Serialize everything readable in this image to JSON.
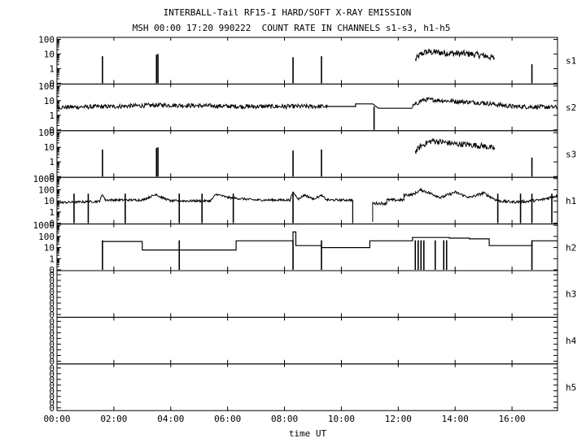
{
  "chart_data": {
    "type": "line",
    "title": "INTERBALL-Tail RF15-I HARD/SOFT X-RAY EMISSION",
    "subtitle": "MSH 00:00 17:20 990222  COUNT RATE IN CHANNELS s1-s3, h1-h5",
    "xlabel": "time UT",
    "x_unit": "hours UT",
    "xlim": [
      0,
      17.6
    ],
    "x_ticks": [
      {
        "x": 0,
        "label": "00:00"
      },
      {
        "x": 2,
        "label": "02:00"
      },
      {
        "x": 4,
        "label": "04:00"
      },
      {
        "x": 6,
        "label": "06:00"
      },
      {
        "x": 8,
        "label": "08:00"
      },
      {
        "x": 10,
        "label": "10:00"
      },
      {
        "x": 12,
        "label": "12:00"
      },
      {
        "x": 14,
        "label": "14:00"
      },
      {
        "x": 16,
        "label": "16:00"
      }
    ],
    "y_scale": "log",
    "panels": [
      {
        "name": "s1",
        "ylim": [
          0.1,
          120
        ],
        "y_ticks": [
          {
            "v": 0.1,
            "label": "0"
          },
          {
            "v": 1,
            "label": "1"
          },
          {
            "v": 10,
            "label": "10"
          },
          {
            "v": 100,
            "label": "100"
          }
        ],
        "series": {
          "base": 0.1,
          "spikes": [
            [
              1.6,
              7
            ],
            [
              3.5,
              9
            ],
            [
              3.55,
              10
            ],
            [
              8.3,
              6
            ],
            [
              9.3,
              7
            ],
            [
              16.7,
              2
            ]
          ],
          "segments": [
            {
              "x": [
                12.6,
                12.8,
                13.0,
                13.3,
                13.6,
                14.0,
                14.5,
                15.0,
                15.4
              ],
              "y": [
                4,
                10,
                14,
                13,
                12,
                11,
                10,
                8,
                5
              ],
              "noise": 0.45
            }
          ]
        }
      },
      {
        "name": "s2",
        "ylim": [
          0.1,
          120
        ],
        "y_ticks": [
          {
            "v": 0.1,
            "label": "0"
          },
          {
            "v": 1,
            "label": "1"
          },
          {
            "v": 10,
            "label": "10"
          },
          {
            "v": 100,
            "label": "100"
          }
        ],
        "series": {
          "base": 0.1,
          "spikes": [
            [
              11.15,
              4
            ]
          ],
          "segments": [
            {
              "x": [
                0,
                2,
                3.7,
                5,
                6.5,
                8,
                9.5
              ],
              "y": [
                3.5,
                4,
                5,
                4.5,
                4,
                4,
                4
              ],
              "noise": 0.3
            },
            {
              "x": [
                9.5,
                10.5,
                10.5,
                11.1,
                11.3,
                12.5
              ],
              "y": [
                4,
                4,
                6,
                6,
                3,
                3
              ],
              "noise": 0
            },
            {
              "x": [
                12.5,
                12.8,
                13.0,
                14.0,
                15.0,
                16.0,
                17.6
              ],
              "y": [
                4,
                10,
                12,
                9,
                7,
                4,
                3.5
              ],
              "noise": 0.3
            }
          ]
        }
      },
      {
        "name": "s3",
        "ylim": [
          0.1,
          120
        ],
        "y_ticks": [
          {
            "v": 0.1,
            "label": "0"
          },
          {
            "v": 1,
            "label": "1"
          },
          {
            "v": 10,
            "label": "10"
          },
          {
            "v": 100,
            "label": "100"
          }
        ],
        "series": {
          "base": 0.1,
          "spikes": [
            [
              1.6,
              7
            ],
            [
              3.5,
              9
            ],
            [
              3.55,
              10
            ],
            [
              8.3,
              6
            ],
            [
              9.3,
              7
            ],
            [
              16.7,
              2
            ]
          ],
          "segments": [
            {
              "x": [
                12.6,
                12.8,
                13.0,
                13.2,
                13.6,
                14.0,
                14.5,
                15.0,
                15.4
              ],
              "y": [
                5,
                12,
                20,
                28,
                22,
                17,
                15,
                12,
                8
              ],
              "noise": 0.4
            }
          ]
        }
      },
      {
        "name": "h1",
        "ylim": [
          0.1,
          1100
        ],
        "y_ticks": [
          {
            "v": 0.1,
            "label": "0"
          },
          {
            "v": 1,
            "label": "1"
          },
          {
            "v": 10,
            "label": "10"
          },
          {
            "v": 100,
            "label": "100"
          },
          {
            "v": 1000,
            "label": "1000"
          }
        ],
        "series": {
          "base": 0.1,
          "spikes": [
            [
              0.6,
              0.1
            ],
            [
              1.1,
              0.1
            ],
            [
              2.4,
              0.1
            ],
            [
              4.3,
              0.1
            ],
            [
              5.1,
              0.1
            ],
            [
              6.2,
              0.1
            ],
            [
              8.3,
              0.1
            ],
            [
              15.5,
              0.1
            ],
            [
              16.3,
              0.1
            ],
            [
              16.7,
              0.1
            ],
            [
              17.4,
              0.1
            ]
          ],
          "segments": [
            {
              "x": [
                0,
                1.5,
                1.6,
                1.7,
                3.0,
                3.5,
                3.6,
                4.0,
                5.4,
                5.6,
                6.0,
                7.0,
                8.2,
                8.3,
                8.5,
                8.7,
                9.0,
                9.3,
                9.5,
                10.4
              ],
              "y": [
                7,
                9,
                40,
                12,
                12,
                40,
                25,
                10,
                10,
                40,
                20,
                12,
                12,
                60,
                15,
                35,
                15,
                30,
                12,
                12
              ],
              "noise": 0.2
            },
            {
              "x": [
                10.4,
                10.4
              ],
              "y": [
                12,
                0.1
              ],
              "noise": 0
            },
            {
              "x": [
                11.1,
                11.1,
                11.6,
                11.6,
                12.2,
                12.2,
                12.5,
                12.8,
                13.2,
                13.5,
                14.0,
                14.5,
                15.0,
                15.5,
                16.0,
                16.5,
                17.0,
                17.6
              ],
              "y": [
                0.1,
                6,
                6,
                12,
                12,
                35,
                35,
                100,
                40,
                20,
                60,
                20,
                50,
                10,
                8,
                9,
                12,
                30
              ],
              "noise": 0.25
            }
          ]
        }
      },
      {
        "name": "h2",
        "ylim": [
          0.1,
          1100
        ],
        "y_ticks": [
          {
            "v": 0.1,
            "label": "0"
          },
          {
            "v": 1,
            "label": "1"
          },
          {
            "v": 10,
            "label": "10"
          },
          {
            "v": 100,
            "label": "100"
          },
          {
            "v": 1000,
            "label": "1000"
          }
        ],
        "series": {
          "base": 0.1,
          "spikes": [
            [
              1.6,
              0.1
            ],
            [
              4.3,
              0.1
            ],
            [
              8.3,
              0.1
            ],
            [
              9.3,
              0.1
            ],
            [
              12.6,
              0.1
            ],
            [
              12.7,
              0.1
            ],
            [
              12.8,
              0.1
            ],
            [
              12.9,
              0.1
            ],
            [
              13.3,
              0.1
            ],
            [
              13.6,
              0.1
            ],
            [
              13.7,
              0.1
            ],
            [
              16.7,
              0.1
            ]
          ],
          "segments": [
            {
              "x": [
                1.6,
                3.0,
                3.0,
                6.3,
                6.3,
                8.3,
                8.3,
                8.4,
                8.4,
                9.3,
                9.3,
                11.0,
                11.0,
                12.5,
                12.5,
                13.8,
                13.8,
                14.5,
                14.5,
                15.2,
                15.2,
                16.7,
                16.7,
                17.6
              ],
              "y": [
                35,
                35,
                6,
                6,
                40,
                40,
                250,
                250,
                15,
                15,
                10,
                10,
                40,
                40,
                80,
                80,
                70,
                70,
                60,
                60,
                15,
                15,
                40,
                40
              ],
              "noise": 0
            }
          ]
        }
      },
      {
        "name": "h3",
        "ylim": [
          0,
          1
        ],
        "y_ticks": [],
        "series": {
          "base": 0,
          "spikes": [],
          "segments": []
        }
      },
      {
        "name": "h4",
        "ylim": [
          0,
          1
        ],
        "y_ticks": [],
        "series": {
          "base": 0,
          "spikes": [],
          "segments": []
        }
      },
      {
        "name": "h5",
        "ylim": [
          0,
          1
        ],
        "y_ticks": [],
        "series": {
          "base": 0,
          "spikes": [],
          "segments": []
        }
      }
    ],
    "empty_panel_tick_label": "0",
    "legend": "none",
    "grid": false
  }
}
